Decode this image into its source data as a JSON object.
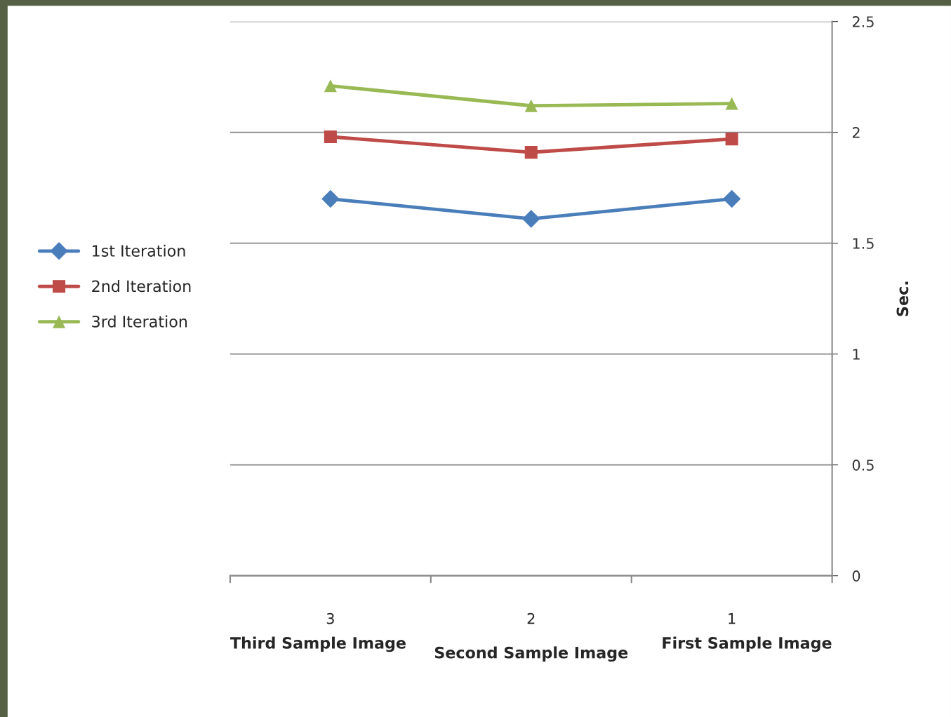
{
  "chart_data": {
    "type": "line",
    "xlabel": "Second Sample Image",
    "ylabel": "Sec.",
    "annotations": [
      "Third Sample Image",
      "First Sample Image"
    ],
    "categories": [
      "3",
      "2",
      "1"
    ],
    "series": [
      {
        "name": "1st Iteration",
        "color": "#4a7ebb",
        "marker": "diamond",
        "values": [
          1.7,
          1.61,
          1.7
        ]
      },
      {
        "name": "2nd Iteration",
        "color": "#be4b48",
        "marker": "square",
        "values": [
          1.98,
          1.91,
          1.97
        ]
      },
      {
        "name": "3rd Iteration",
        "color": "#98b954",
        "marker": "triangle",
        "values": [
          2.21,
          2.12,
          2.13
        ]
      }
    ],
    "ylim": [
      0,
      2.5
    ],
    "yticks": [
      0,
      0.5,
      1,
      1.5,
      2,
      2.5
    ],
    "grid": "y",
    "legend": "left",
    "line_style": "solid"
  }
}
